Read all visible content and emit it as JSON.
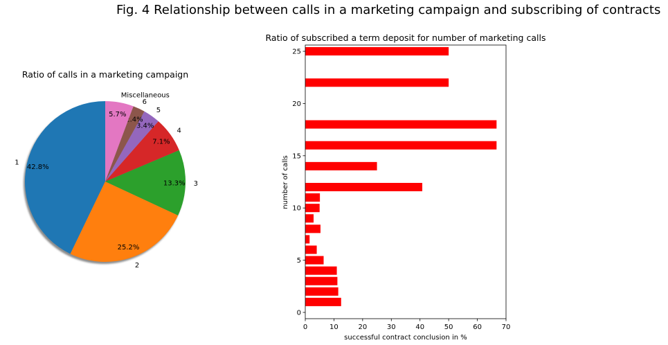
{
  "figure": {
    "title": "Fig. 4 Relationship between calls in a marketing campaign and subscribing of contracts"
  },
  "chart_data": [
    {
      "type": "pie",
      "title": "Ratio of calls in a marketing campaign",
      "shadow": true,
      "start_angle_deg": 90,
      "slices": [
        {
          "label": "1",
          "value": 42.8,
          "pct_label": "42.8%",
          "color": "#1f77b4"
        },
        {
          "label": "2",
          "value": 25.2,
          "pct_label": "25.2%",
          "color": "#ff7f0e"
        },
        {
          "label": "3",
          "value": 13.3,
          "pct_label": "13.3%",
          "color": "#2ca02c"
        },
        {
          "label": "4",
          "value": 7.1,
          "pct_label": "7.1%",
          "color": "#d62728"
        },
        {
          "label": "5",
          "value": 3.4,
          "pct_label": "3.4%",
          "color": "#9467bd"
        },
        {
          "label": "6",
          "value": 2.4,
          "pct_label": "2.4%",
          "color": "#8c564b"
        },
        {
          "label": "Miscellaneous",
          "value": 5.7,
          "pct_label": "5.7%",
          "color": "#e377c2"
        }
      ]
    },
    {
      "type": "bar",
      "orientation": "horizontal",
      "title": "Ratio of subscribed a term deposit for number of marketing calls",
      "xlabel": "successful contract conclusion in %",
      "ylabel": "number of calls",
      "bar_color": "#ff0000",
      "xlim": [
        0,
        70
      ],
      "ylim": [
        -0.6,
        25.6
      ],
      "xticks": [
        0,
        10,
        20,
        30,
        40,
        50,
        60,
        70
      ],
      "yticks": [
        0,
        5,
        10,
        15,
        20,
        25
      ],
      "categories": [
        1,
        2,
        3,
        4,
        5,
        6,
        7,
        8,
        9,
        10,
        11,
        12,
        14,
        16,
        18,
        22,
        25
      ],
      "values": [
        12.5,
        11.5,
        11.2,
        11.0,
        6.4,
        4.0,
        1.5,
        5.3,
        2.9,
        5.0,
        5.1,
        40.8,
        25.0,
        66.7,
        66.7,
        50.0,
        50.0
      ]
    }
  ]
}
